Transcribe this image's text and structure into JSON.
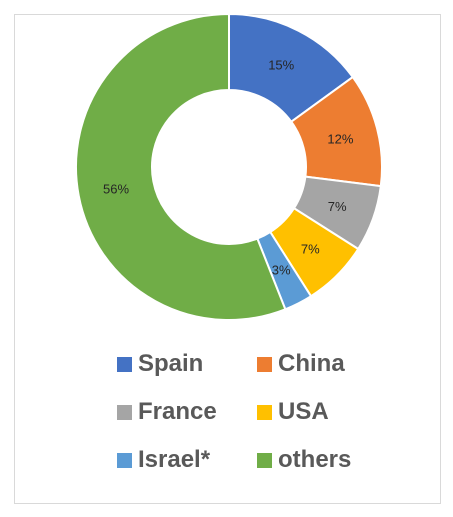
{
  "chart_data": {
    "type": "pie",
    "variant": "doughnut",
    "categories": [
      "Spain",
      "China",
      "France",
      "USA",
      "Israel*",
      "others"
    ],
    "values": [
      15,
      12,
      7,
      7,
      3,
      56
    ],
    "labels": [
      "15%",
      "12%",
      "7%",
      "7%",
      "3%",
      "56%"
    ],
    "colors": [
      "#4472c4",
      "#ed7d31",
      "#a5a5a5",
      "#ffc000",
      "#5b9bd5",
      "#70ad47"
    ],
    "legend_position": "bottom",
    "title": ""
  }
}
